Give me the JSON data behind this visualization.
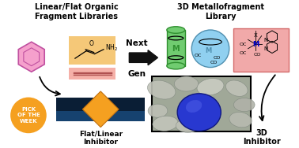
{
  "bg_color": "#ffffff",
  "title_left": "Linear/Flat Organic\nFragment Libraries",
  "title_right": "3D Metallofragment\nLibrary",
  "label_flat": "Flat/Linear\nInhibitor",
  "label_3d": "3D\nInhibitor",
  "arrow_top": "Next",
  "arrow_bot": "Gen",
  "pick_text": "PICK\nOF THE\nWEEK",
  "colors": {
    "benzene_fill": "#f5a0cc",
    "benzene_edge": "#c050a0",
    "amide_bg": "#f5c878",
    "alkyne_bg": "#f5b0a8",
    "alkyne_line": "#b05050",
    "arrow_black": "#111111",
    "cyl_green": "#70cc70",
    "cyl_green_dark": "#309030",
    "sph_blue": "#90d0f0",
    "sph_blue_dark": "#5090b0",
    "pink_box_fill": "#f0a0a0",
    "pink_box_edge": "#d06060",
    "orange_diamond": "#f5a020",
    "orange_diamond_edge": "#c07010",
    "surf_black": "#0a1e35",
    "surf_blue_sheen": "#2060a0",
    "pick_orange": "#f5a020",
    "protein_bg": "#a0a898",
    "protein_blob": "#c8cac0",
    "blue_ligand": "#2838d0",
    "blue_ligand_edge": "#101880",
    "text_black": "#000000",
    "text_white": "#ffffff",
    "text_blue": "#0000cc"
  }
}
